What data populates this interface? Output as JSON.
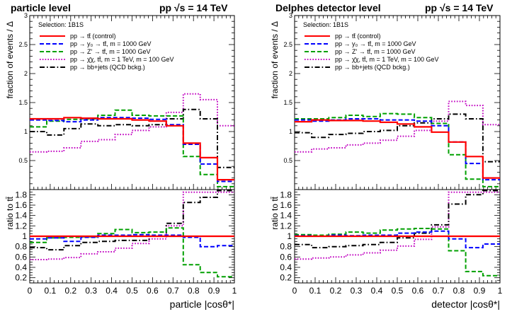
{
  "chart_data": [
    {
      "type": "line",
      "title": "particle level",
      "energy_label": "pp  √s = 14 TeV",
      "selection": "Selection: 1B1S",
      "xlabel": "particle  |cosθ*|",
      "upper_ylabel": "fraction of events / Δ",
      "lower_ylabel": "ratio to tt̄",
      "xlim": [
        0,
        1
      ],
      "upper_ylim": [
        0,
        3
      ],
      "lower_ylim": [
        0.1,
        1.9
      ],
      "x_ticks": [
        "0",
        "0.1",
        "0.2",
        "0.3",
        "0.4",
        "0.5",
        "0.6",
        "0.7",
        "0.8",
        "0.9",
        "1"
      ],
      "upper_ticks": [
        "0.5",
        "1",
        "1.5",
        "2",
        "2.5",
        "3"
      ],
      "lower_ticks": [
        "0.2",
        "0.4",
        "0.6",
        "0.8",
        "1",
        "1.2",
        "1.4",
        "1.6",
        "1.8"
      ],
      "bin_edges": [
        0,
        0.083,
        0.167,
        0.25,
        0.333,
        0.417,
        0.5,
        0.583,
        0.667,
        0.75,
        0.833,
        0.917,
        1.0
      ],
      "series": [
        {
          "name": "pp → tt̄ (control)",
          "color": "#ff0000",
          "style": "solid",
          "values": [
            1.22,
            1.22,
            1.24,
            1.23,
            1.22,
            1.22,
            1.2,
            1.18,
            1.1,
            0.8,
            0.55,
            0.17
          ],
          "ratio": [
            1,
            1,
            1,
            1,
            1,
            1,
            1,
            1,
            1,
            1,
            1,
            1
          ]
        },
        {
          "name": "pp → y₀ → tt̄, m = 1000 GeV",
          "color": "#0000ff",
          "style": "dashed",
          "values": [
            1.2,
            1.19,
            1.17,
            1.2,
            1.24,
            1.24,
            1.23,
            1.21,
            1.12,
            0.78,
            0.44,
            0.14
          ],
          "ratio": [
            0.95,
            0.97,
            0.9,
            0.98,
            1.02,
            1.02,
            1.03,
            1.02,
            1.02,
            0.98,
            0.8,
            0.82
          ]
        },
        {
          "name": "pp → Z′ → tt̄, m = 1000 GeV",
          "color": "#00a000",
          "style": "dashed",
          "values": [
            1.08,
            1.18,
            1.21,
            1.22,
            1.28,
            1.37,
            1.28,
            1.27,
            1.27,
            0.57,
            0.26,
            0.05
          ],
          "ratio": [
            0.88,
            0.97,
            0.98,
            0.99,
            1.05,
            1.13,
            1.07,
            1.08,
            1.16,
            0.45,
            0.3,
            0.22
          ]
        },
        {
          "name": "pp → χ̄χ, tt̄, m = 1 TeV, m = 100 GeV",
          "color": "#c000c0",
          "style": "dotted",
          "values": [
            0.65,
            0.66,
            0.72,
            0.83,
            0.86,
            0.95,
            1.02,
            1.08,
            1.33,
            1.65,
            1.55,
            1.1
          ],
          "ratio": [
            0.55,
            0.56,
            0.59,
            0.66,
            0.7,
            0.77,
            0.86,
            0.95,
            1.2,
            1.85,
            1.85,
            1.85
          ]
        },
        {
          "name": "pp → bb+jets (QCD bckg.)",
          "color": "#000000",
          "style": "dashdot",
          "values": [
            1.0,
            0.94,
            1.05,
            1.13,
            1.1,
            1.12,
            1.1,
            1.12,
            1.22,
            1.38,
            1.22,
            0.38
          ],
          "ratio": [
            0.78,
            0.74,
            0.82,
            0.88,
            0.9,
            0.92,
            0.92,
            1.0,
            1.25,
            1.65,
            1.75,
            1.88
          ]
        }
      ]
    },
    {
      "type": "line",
      "title": "Delphes detector level",
      "energy_label": "pp  √s = 14 TeV",
      "selection": "Selection: 1B1S",
      "xlabel": "detector  |cosθ*|",
      "upper_ylabel": "fraction of events / Δ",
      "lower_ylabel": "ratio to tt̄",
      "xlim": [
        0,
        1
      ],
      "upper_ylim": [
        0,
        3
      ],
      "lower_ylim": [
        0.1,
        1.9
      ],
      "x_ticks": [
        "0",
        "0.1",
        "0.2",
        "0.3",
        "0.4",
        "0.5",
        "0.6",
        "0.7",
        "0.8",
        "0.9",
        "1"
      ],
      "upper_ticks": [
        "0.5",
        "1",
        "1.5",
        "2",
        "2.5",
        "3"
      ],
      "lower_ticks": [
        "0.2",
        "0.4",
        "0.6",
        "0.8",
        "1",
        "1.2",
        "1.4",
        "1.6",
        "1.8"
      ],
      "bin_edges": [
        0,
        0.083,
        0.167,
        0.25,
        0.333,
        0.417,
        0.5,
        0.583,
        0.667,
        0.75,
        0.833,
        0.917,
        1.0
      ],
      "series": [
        {
          "name": "pp → tt̄ (control)",
          "color": "#ff0000",
          "style": "solid",
          "values": [
            1.17,
            1.2,
            1.19,
            1.19,
            1.18,
            1.16,
            1.13,
            1.08,
            0.99,
            0.82,
            0.57,
            0.2
          ],
          "ratio": [
            1,
            1,
            1,
            1,
            1,
            1,
            1,
            1,
            1,
            1,
            1,
            1
          ]
        },
        {
          "name": "pp → y₀ → tt̄, m = 1000 GeV",
          "color": "#0000ff",
          "style": "dashed",
          "values": [
            1.2,
            1.18,
            1.2,
            1.22,
            1.22,
            1.2,
            1.2,
            1.18,
            1.1,
            0.82,
            0.45,
            0.17
          ],
          "ratio": [
            1.01,
            1.0,
            1.02,
            1.01,
            1.02,
            1.02,
            1.06,
            1.08,
            1.1,
            0.95,
            0.78,
            0.85
          ]
        },
        {
          "name": "pp → Z′ → tt̄, m = 1000 GeV",
          "color": "#00a000",
          "style": "dashed",
          "values": [
            1.22,
            1.22,
            1.24,
            1.28,
            1.26,
            1.31,
            1.3,
            1.24,
            1.14,
            0.6,
            0.18,
            0.05
          ],
          "ratio": [
            1.03,
            1.02,
            1.04,
            1.08,
            1.06,
            1.12,
            1.14,
            1.15,
            1.14,
            0.72,
            0.32,
            0.24
          ]
        },
        {
          "name": "pp → χ̄χ, tt̄, m = 1 TeV, m = 100 GeV",
          "color": "#c000c0",
          "style": "dotted",
          "values": [
            0.65,
            0.7,
            0.72,
            0.77,
            0.8,
            0.85,
            0.92,
            1.02,
            1.18,
            1.52,
            1.45,
            1.12
          ],
          "ratio": [
            0.56,
            0.58,
            0.6,
            0.64,
            0.68,
            0.73,
            0.81,
            0.94,
            1.18,
            1.85,
            1.85,
            1.85
          ]
        },
        {
          "name": "pp → bb+jets (QCD bckg.)",
          "color": "#000000",
          "style": "dashdot",
          "values": [
            0.98,
            0.9,
            0.95,
            0.97,
            1.0,
            1.02,
            1.1,
            1.15,
            1.22,
            1.3,
            1.22,
            0.48
          ],
          "ratio": [
            0.84,
            0.78,
            0.8,
            0.82,
            0.84,
            0.88,
            0.97,
            1.06,
            1.22,
            1.62,
            1.8,
            1.88
          ]
        }
      ]
    }
  ]
}
